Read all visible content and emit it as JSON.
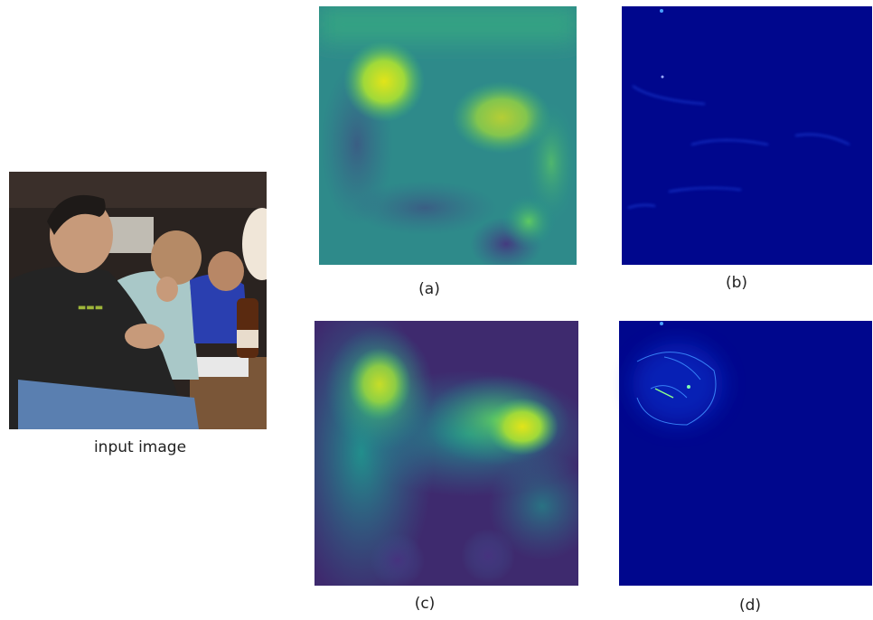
{
  "figure": {
    "input_caption": "input image",
    "panels": [
      {
        "caption": "(a)"
      },
      {
        "caption": "(b)"
      },
      {
        "caption": "(c)"
      },
      {
        "caption": "(d)"
      }
    ]
  }
}
